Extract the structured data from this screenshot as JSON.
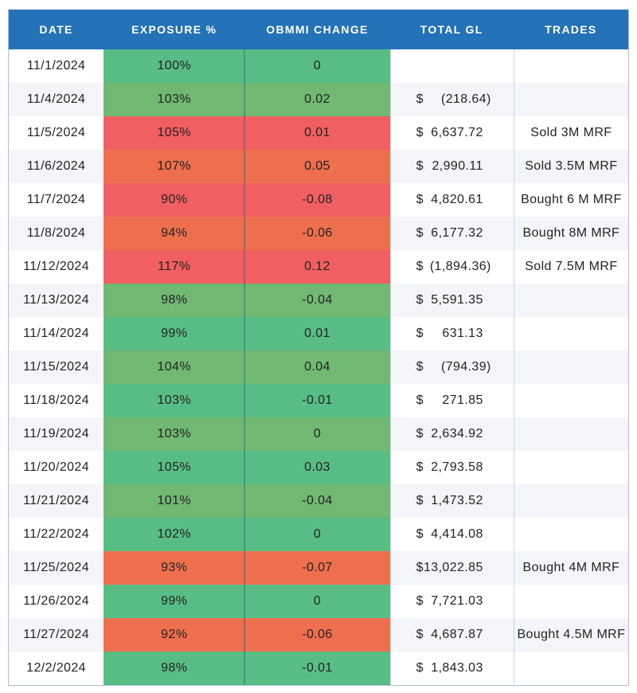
{
  "table": {
    "currency_symbol": "$"
  },
  "colors": {
    "header_bg": "#2472B7",
    "header_text": "#FFFFFF",
    "stripe": "#F3F5F8",
    "border": "#A9BFDB",
    "green": "#58BD84",
    "green_muted": "#71B873",
    "red": "#F15F62",
    "orange": "#EE6F4E"
  },
  "chart_data": {
    "type": "table",
    "columns": [
      "DATE",
      "EXPOSURE %",
      "OBMMI CHANGE",
      "TOTAL GL",
      "TRADES"
    ],
    "rows": [
      {
        "date": "11/1/2024",
        "exposure_pct": 100,
        "exposure_display": "100%",
        "obmmi_change": 0,
        "obmmi_display": "0",
        "total_gl": null,
        "total_gl_display": "",
        "trades": "",
        "tone": "green"
      },
      {
        "date": "11/4/2024",
        "exposure_pct": 103,
        "exposure_display": "103%",
        "obmmi_change": 0.02,
        "obmmi_display": "0.02",
        "total_gl": -218.64,
        "total_gl_display": "(218.64)",
        "trades": "",
        "tone": "green_muted"
      },
      {
        "date": "11/5/2024",
        "exposure_pct": 105,
        "exposure_display": "105%",
        "obmmi_change": 0.01,
        "obmmi_display": "0.01",
        "total_gl": 6637.72,
        "total_gl_display": "6,637.72",
        "trades": "Sold 3M MRF",
        "tone": "red"
      },
      {
        "date": "11/6/2024",
        "exposure_pct": 107,
        "exposure_display": "107%",
        "obmmi_change": 0.05,
        "obmmi_display": "0.05",
        "total_gl": 2990.11,
        "total_gl_display": "2,990.11",
        "trades": "Sold 3.5M MRF",
        "tone": "orange"
      },
      {
        "date": "11/7/2024",
        "exposure_pct": 90,
        "exposure_display": "90%",
        "obmmi_change": -0.08,
        "obmmi_display": "-0.08",
        "total_gl": 4820.61,
        "total_gl_display": "4,820.61",
        "trades": "Bought 6 M MRF",
        "tone": "red"
      },
      {
        "date": "11/8/2024",
        "exposure_pct": 94,
        "exposure_display": "94%",
        "obmmi_change": -0.06,
        "obmmi_display": "-0.06",
        "total_gl": 6177.32,
        "total_gl_display": "6,177.32",
        "trades": "Bought 8M MRF",
        "tone": "orange"
      },
      {
        "date": "11/12/2024",
        "exposure_pct": 117,
        "exposure_display": "117%",
        "obmmi_change": 0.12,
        "obmmi_display": "0.12",
        "total_gl": -1894.36,
        "total_gl_display": "(1,894.36)",
        "trades": "Sold 7.5M MRF",
        "tone": "red"
      },
      {
        "date": "11/13/2024",
        "exposure_pct": 98,
        "exposure_display": "98%",
        "obmmi_change": -0.04,
        "obmmi_display": "-0.04",
        "total_gl": 5591.35,
        "total_gl_display": "5,591.35",
        "trades": "",
        "tone": "green_muted"
      },
      {
        "date": "11/14/2024",
        "exposure_pct": 99,
        "exposure_display": "99%",
        "obmmi_change": 0.01,
        "obmmi_display": "0.01",
        "total_gl": 631.13,
        "total_gl_display": "631.13",
        "trades": "",
        "tone": "green"
      },
      {
        "date": "11/15/2024",
        "exposure_pct": 104,
        "exposure_display": "104%",
        "obmmi_change": 0.04,
        "obmmi_display": "0.04",
        "total_gl": -794.39,
        "total_gl_display": "(794.39)",
        "trades": "",
        "tone": "green_muted"
      },
      {
        "date": "11/18/2024",
        "exposure_pct": 103,
        "exposure_display": "103%",
        "obmmi_change": -0.01,
        "obmmi_display": "-0.01",
        "total_gl": 271.85,
        "total_gl_display": "271.85",
        "trades": "",
        "tone": "green"
      },
      {
        "date": "11/19/2024",
        "exposure_pct": 103,
        "exposure_display": "103%",
        "obmmi_change": 0,
        "obmmi_display": "0",
        "total_gl": 2634.92,
        "total_gl_display": "2,634.92",
        "trades": "",
        "tone": "green_muted"
      },
      {
        "date": "11/20/2024",
        "exposure_pct": 105,
        "exposure_display": "105%",
        "obmmi_change": 0.03,
        "obmmi_display": "0.03",
        "total_gl": 2793.58,
        "total_gl_display": "2,793.58",
        "trades": "",
        "tone": "green"
      },
      {
        "date": "11/21/2024",
        "exposure_pct": 101,
        "exposure_display": "101%",
        "obmmi_change": -0.04,
        "obmmi_display": "-0.04",
        "total_gl": 1473.52,
        "total_gl_display": "1,473.52",
        "trades": "",
        "tone": "green_muted"
      },
      {
        "date": "11/22/2024",
        "exposure_pct": 102,
        "exposure_display": "102%",
        "obmmi_change": 0,
        "obmmi_display": "0",
        "total_gl": 4414.08,
        "total_gl_display": "4,414.08",
        "trades": "",
        "tone": "green"
      },
      {
        "date": "11/25/2024",
        "exposure_pct": 93,
        "exposure_display": "93%",
        "obmmi_change": -0.07,
        "obmmi_display": "-0.07",
        "total_gl": 13022.85,
        "total_gl_display": "13,022.85",
        "trades": "Bought 4M MRF",
        "tone": "orange"
      },
      {
        "date": "11/26/2024",
        "exposure_pct": 99,
        "exposure_display": "99%",
        "obmmi_change": 0,
        "obmmi_display": "0",
        "total_gl": 7721.03,
        "total_gl_display": "7,721.03",
        "trades": "",
        "tone": "green"
      },
      {
        "date": "11/27/2024",
        "exposure_pct": 92,
        "exposure_display": "92%",
        "obmmi_change": -0.06,
        "obmmi_display": "-0.06",
        "total_gl": 4687.87,
        "total_gl_display": "4,687.87",
        "trades": "Bought 4.5M MRF",
        "tone": "orange"
      },
      {
        "date": "12/2/2024",
        "exposure_pct": 98,
        "exposure_display": "98%",
        "obmmi_change": -0.01,
        "obmmi_display": "-0.01",
        "total_gl": 1843.03,
        "total_gl_display": "1,843.03",
        "trades": "",
        "tone": "green"
      }
    ]
  }
}
